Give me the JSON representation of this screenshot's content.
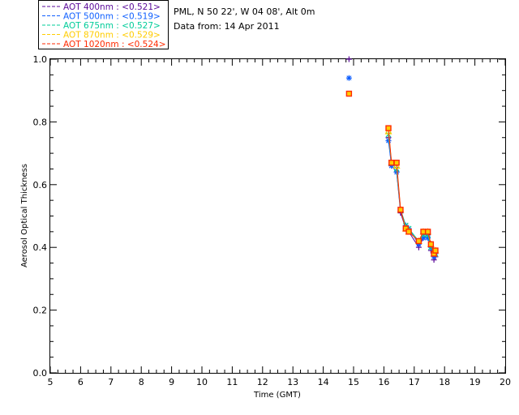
{
  "header": {
    "site": "PML, N 50 22', W 04 08', Alt 0m",
    "date": "Data from: 14 Apr 2011"
  },
  "chart_data": {
    "type": "scatter",
    "xlabel": "Time (GMT)",
    "ylabel": "Aerosol Optical Thickness",
    "xlim": [
      5,
      20
    ],
    "ylim": [
      0.0,
      1.0
    ],
    "xticks": [
      "5",
      "6",
      "7",
      "8",
      "9",
      "10",
      "11",
      "12",
      "13",
      "14",
      "15",
      "16",
      "17",
      "18",
      "19",
      "20"
    ],
    "yticks": [
      "0.0",
      "0.2",
      "0.4",
      "0.6",
      "0.8",
      "1.0"
    ],
    "legend_position": "top-left",
    "series": [
      {
        "name": "AOT  400nm : <0.521>",
        "color": "#5a0a9a",
        "marker": "plus",
        "x": [
          14.85,
          16.15,
          16.25,
          16.42,
          16.55,
          16.72,
          16.82,
          17.15,
          17.3,
          17.45,
          17.55,
          17.65,
          17.7
        ],
        "y": [
          1.0,
          0.75,
          0.66,
          0.64,
          0.51,
          0.46,
          0.45,
          0.4,
          0.43,
          0.44,
          0.39,
          0.36,
          0.37
        ]
      },
      {
        "name": "AOT  500nm : <0.519>",
        "color": "#1060ff",
        "marker": "star",
        "x": [
          14.85,
          16.15,
          16.25,
          16.42,
          16.55,
          16.72,
          16.82,
          17.15,
          17.3,
          17.45,
          17.55,
          17.65,
          17.7
        ],
        "y": [
          0.94,
          0.74,
          0.66,
          0.64,
          0.52,
          0.47,
          0.46,
          0.41,
          0.43,
          0.43,
          0.4,
          0.37,
          0.38
        ]
      },
      {
        "name": "AOT  675nm : <0.527>",
        "color": "#00cc99",
        "marker": "cross",
        "x": [
          16.15,
          16.25,
          16.42,
          16.55,
          16.72,
          16.82,
          17.15,
          17.3,
          17.45,
          17.55,
          17.65,
          17.7
        ],
        "y": [
          0.76,
          0.67,
          0.65,
          0.52,
          0.47,
          0.46,
          0.42,
          0.44,
          0.44,
          0.4,
          0.38,
          0.38
        ]
      },
      {
        "name": "AOT  870nm : <0.529>",
        "color": "#ffcc00",
        "marker": "triangle",
        "x": [
          16.15,
          16.25,
          16.42,
          16.55,
          16.72,
          16.82,
          17.15,
          17.3,
          17.45,
          17.55,
          17.65,
          17.7
        ],
        "y": [
          0.77,
          0.67,
          0.66,
          0.52,
          0.46,
          0.45,
          0.42,
          0.45,
          0.45,
          0.41,
          0.38,
          0.39
        ]
      },
      {
        "name": "AOT 1020nm : <0.524>",
        "color": "#ff2a00",
        "marker": "square",
        "x": [
          14.85,
          16.15,
          16.25,
          16.42,
          16.55,
          16.72,
          16.82,
          17.15,
          17.3,
          17.45,
          17.55,
          17.65,
          17.7
        ],
        "y": [
          0.89,
          0.78,
          0.67,
          0.67,
          0.52,
          0.46,
          0.45,
          0.42,
          0.45,
          0.45,
          0.41,
          0.38,
          0.39
        ]
      }
    ]
  }
}
